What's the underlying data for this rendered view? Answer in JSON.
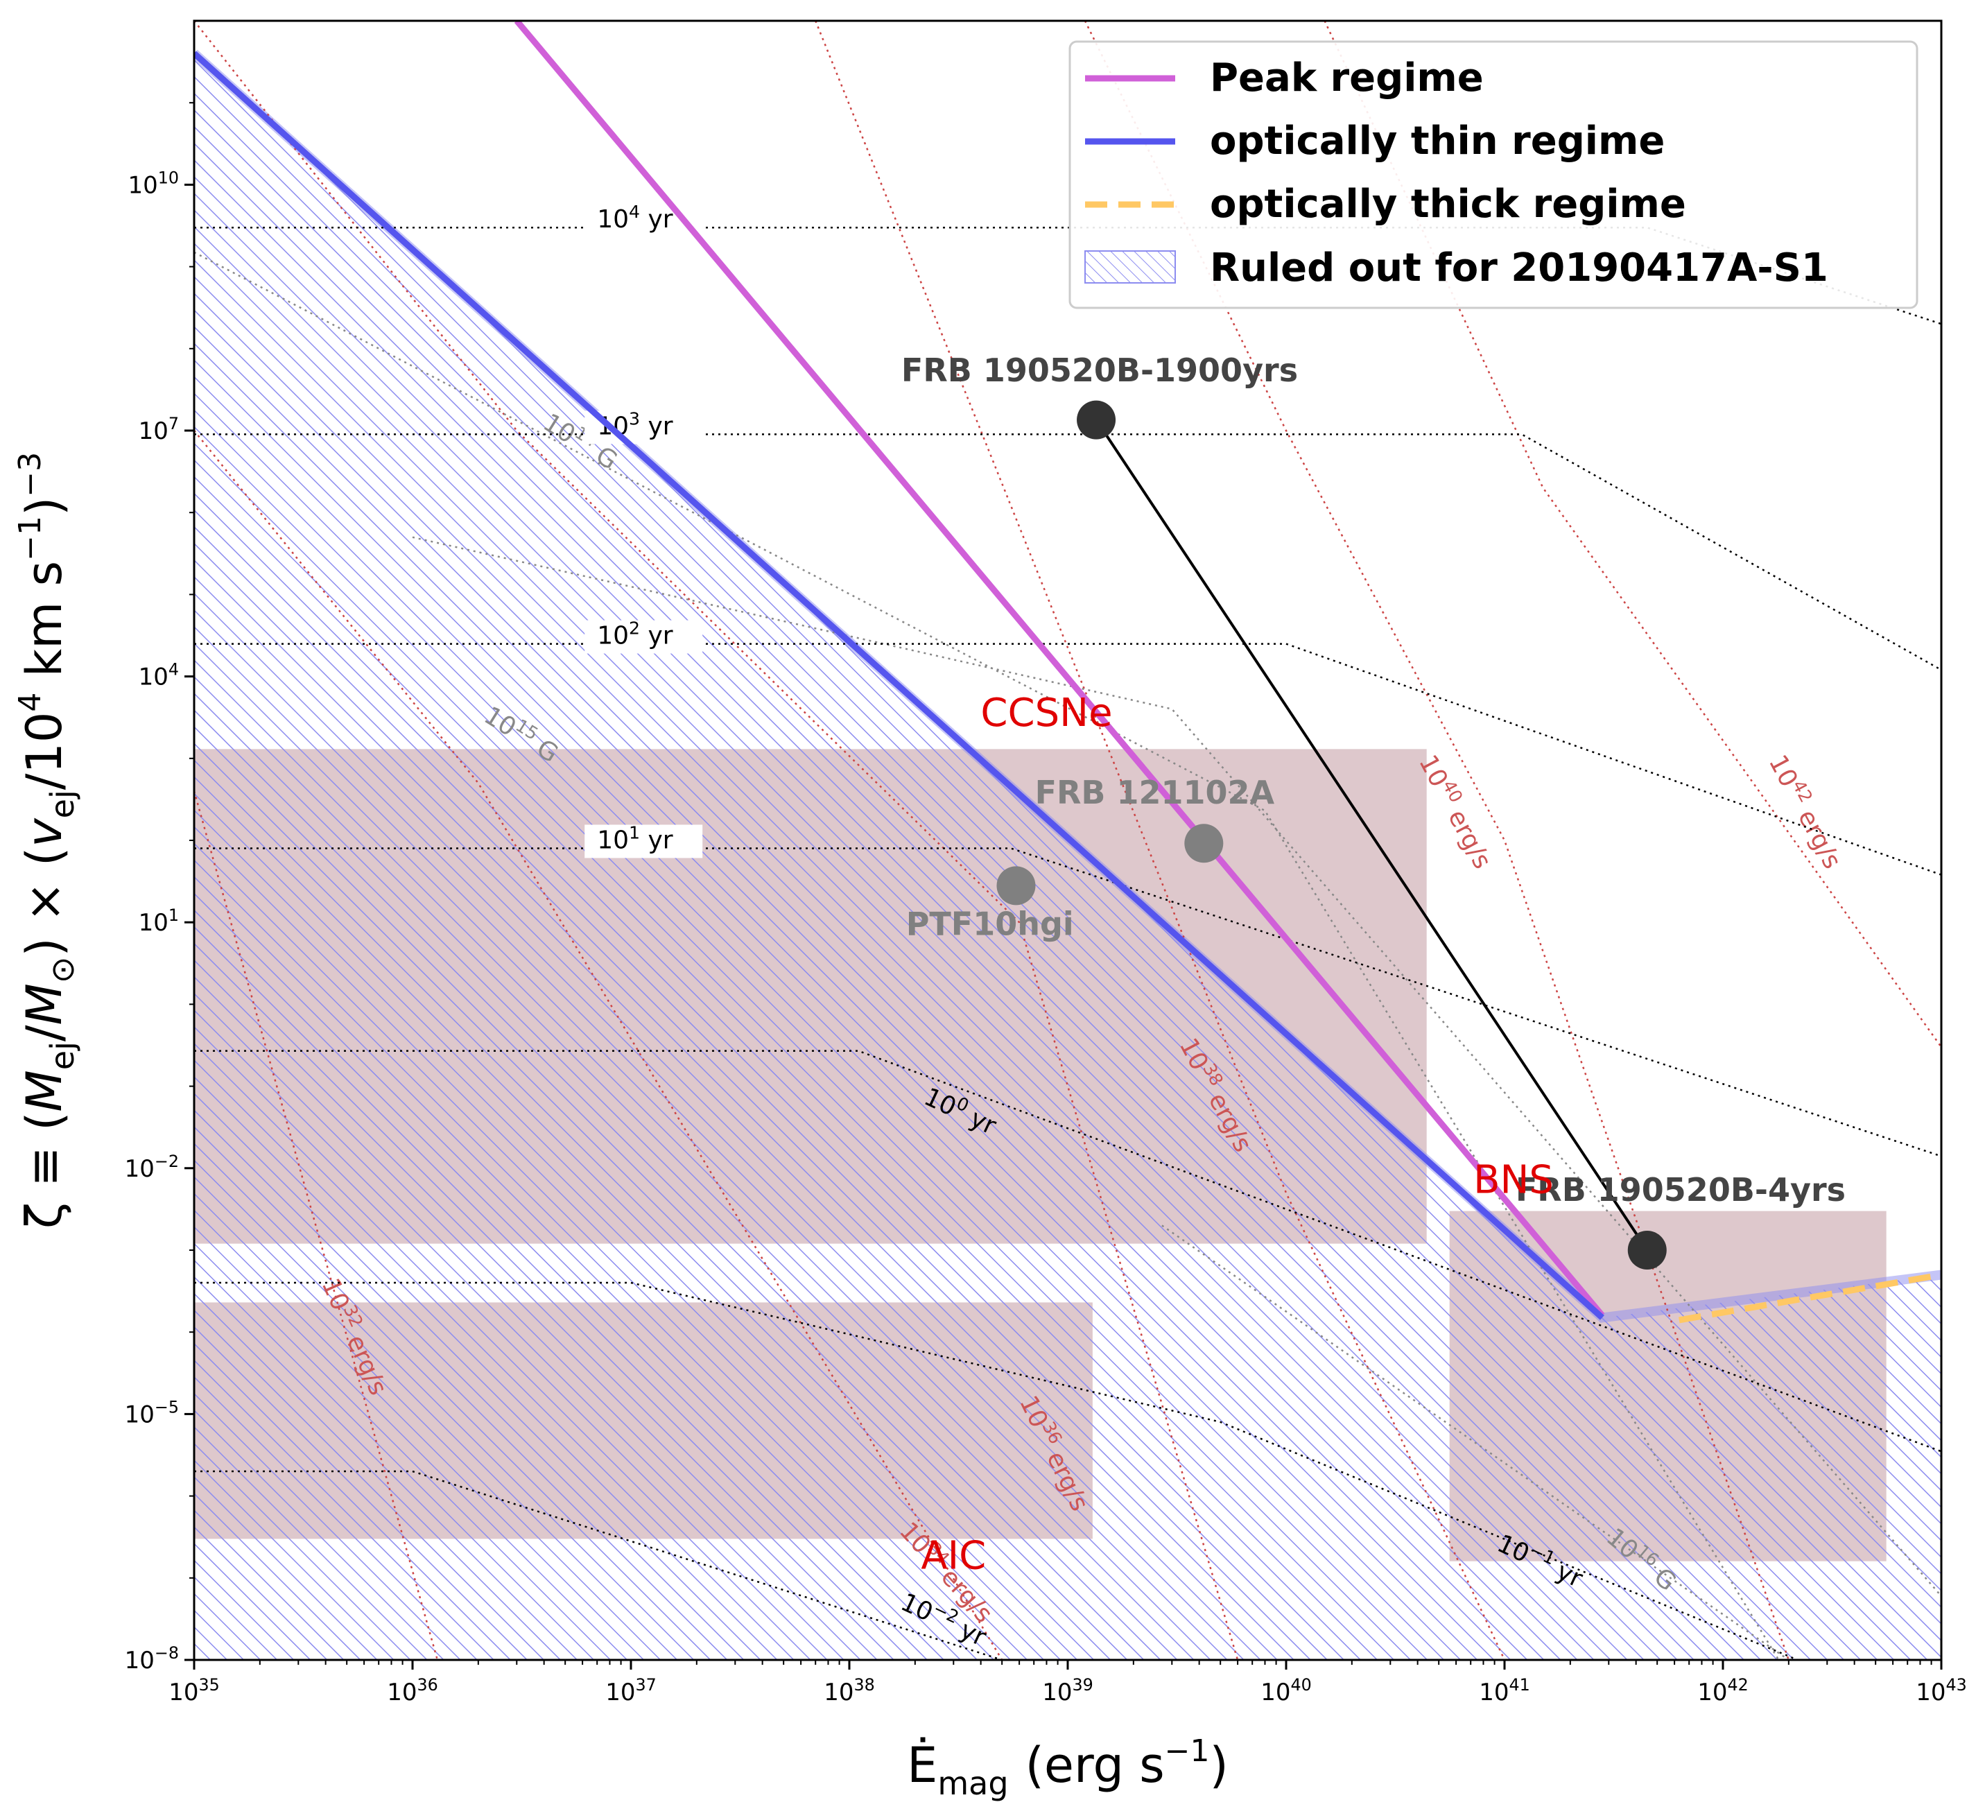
{
  "chart_data": {
    "type": "line",
    "xlabel_base": "Ė",
    "xlabel_sub": "mag",
    "xlabel_units": "(erg s",
    "xlabel_units_exp": "−1",
    "xlabel_units_close": ")",
    "ylabel": "ζ ≡ (M_ej/M_⊙) × (v_ej/10⁴ km s⁻¹)⁻³",
    "ylabel_parts": {
      "zeta": "ζ ≡ (",
      "m": "M",
      "ej1": "ej",
      "slash": "/",
      "m2": "M",
      "sun": "⊙",
      "mid": ") × (",
      "v": "v",
      "ej2": "ej",
      "unit": "/10",
      "exp4": "4",
      "km": " km s",
      "expm1": "−1",
      "close": ")",
      "expm3": "−3"
    },
    "x_scale": "log",
    "y_scale": "log",
    "xlim": [
      1e+35,
      1e+43
    ],
    "ylim": [
      1e-08,
      1000000000000.0
    ],
    "x_ticks": [
      {
        "value": 1e+35,
        "base": "10",
        "exp": "35"
      },
      {
        "value": 1e+36,
        "base": "10",
        "exp": "36"
      },
      {
        "value": 1e+37,
        "base": "10",
        "exp": "37"
      },
      {
        "value": 1e+38,
        "base": "10",
        "exp": "38"
      },
      {
        "value": 1e+39,
        "base": "10",
        "exp": "39"
      },
      {
        "value": 1e+40,
        "base": "10",
        "exp": "40"
      },
      {
        "value": 1e+41,
        "base": "10",
        "exp": "41"
      },
      {
        "value": 1e+42,
        "base": "10",
        "exp": "42"
      },
      {
        "value": 1e+43,
        "base": "10",
        "exp": "43"
      }
    ],
    "y_ticks": [
      {
        "value": 1e-08,
        "base": "10",
        "exp": "−8"
      },
      {
        "value": 1e-05,
        "base": "10",
        "exp": "−5"
      },
      {
        "value": 0.01,
        "base": "10",
        "exp": "−2"
      },
      {
        "value": 10.0,
        "base": "10",
        "exp": "1"
      },
      {
        "value": 10000.0,
        "base": "10",
        "exp": "4"
      },
      {
        "value": 10000000.0,
        "base": "10",
        "exp": "7"
      },
      {
        "value": 10000000000.0,
        "base": "10",
        "exp": "10"
      }
    ],
    "legend": {
      "position": "top-right",
      "entries": [
        {
          "label": "Peak regime",
          "color": "#d060d8",
          "style": "solid"
        },
        {
          "label": "optically thin regime",
          "color": "#5555ee",
          "style": "solid"
        },
        {
          "label": "optically thick regime",
          "color": "#ffc864",
          "style": "dashed"
        },
        {
          "label": "Ruled out for 20190417A-S1",
          "color": "#8888ee",
          "style": "hatch"
        }
      ]
    },
    "series": [
      {
        "name": "Peak regime",
        "color": "#d060d8",
        "x": [
          3e+36,
          2.8e+41
        ],
        "y": [
          1000000000000.0,
          0.00016
        ]
      },
      {
        "name": "optically thin regime",
        "color": "#5555ee",
        "x": [
          1e+35,
          2.8e+41
        ],
        "y": [
          400000000000.0,
          0.00015
        ]
      },
      {
        "name": "optically thick regime",
        "color": "#ffc864",
        "x": [
          6.3e+41,
          1e+43
        ],
        "y": [
          0.00014,
          0.0005
        ]
      }
    ],
    "ruled_out_region": {
      "boundary_x": [
        1e+35,
        2.8e+41,
        1e+43
      ],
      "boundary_y": [
        400000000000.0,
        0.00015,
        0.0005
      ],
      "color": "#8888ee"
    },
    "regions": [
      {
        "label": "CCSNe",
        "x": [
          1e+35,
          4.4e+40
        ],
        "y": [
          0.0012,
          1300.0
        ],
        "label_at": [
          8e+38,
          2500.0
        ]
      },
      {
        "label": "BNS",
        "x": [
          5.6e+40,
          5.6e+42
        ],
        "y": [
          1.6e-07,
          0.003
        ],
        "label_at": [
          1.1e+41,
          0.005
        ]
      },
      {
        "label": "AIC",
        "x": [
          1e+35,
          1.3e+39
        ],
        "y": [
          3e-07,
          0.00023
        ],
        "label_at": [
          3e+38,
          1.3e-07
        ]
      }
    ],
    "points": [
      {
        "label": "FRB 190520B-1900yrs",
        "x": 1.35e+39,
        "y": 13500000.0,
        "color": "#333333",
        "label_color": "#444444",
        "label_at": [
          1.4e+39,
          40000000.0
        ]
      },
      {
        "label": "FRB 190520B-4yrs",
        "x": 4.5e+41,
        "y": 0.001,
        "color": "#333333",
        "label_color": "#444444",
        "label_at": [
          6.4e+41,
          0.004
        ]
      },
      {
        "label": "FRB 121102A",
        "x": 4.2e+39,
        "y": 92,
        "color": "#808080",
        "label_color": "#808080",
        "label_at": [
          2.5e+39,
          280
        ]
      },
      {
        "label": "PTF10hgi",
        "x": 5.8e+38,
        "y": 28,
        "color": "#808080",
        "label_color": "#808080",
        "label_at": [
          4.4e+38,
          7
        ]
      }
    ],
    "connector": {
      "x": [
        1.35e+39,
        4.5e+41
      ],
      "y": [
        13500000.0,
        0.001
      ]
    },
    "age_contours": [
      {
        "label": "10⁴ yr",
        "l_base": "10",
        "l_exp": "4",
        "l_unit": " yr",
        "x": [
          1e+35,
          4.5e+41,
          1e+43
        ],
        "y": [
          3000000000.0,
          3000000000.0,
          200000000.0
        ],
        "label_at": [
          7e+36,
          3000000000.0
        ],
        "angle": 0
      },
      {
        "label": "10³ yr",
        "l_base": "10",
        "l_exp": "3",
        "l_unit": " yr",
        "x": [
          1e+35,
          1.2e+41,
          1e+43
        ],
        "y": [
          9000000.0,
          9000000.0,
          12000.0
        ],
        "label_at": [
          7e+36,
          9000000.0
        ],
        "angle": 0
      },
      {
        "label": "10² yr",
        "l_base": "10",
        "l_exp": "2",
        "l_unit": " yr",
        "x": [
          1e+35,
          1e+40,
          1e+43
        ],
        "y": [
          25000.0,
          25000.0,
          38
        ],
        "label_at": [
          7e+36,
          25000.0
        ],
        "angle": 0
      },
      {
        "label": "10¹ yr",
        "l_base": "10",
        "l_exp": "1",
        "l_unit": " yr",
        "x": [
          1e+35,
          5.5e+38,
          1e+43
        ],
        "y": [
          80,
          80,
          0.014
        ],
        "label_at": [
          7e+36,
          80
        ],
        "angle": 0
      },
      {
        "label": "10⁰ yr",
        "l_base": "10",
        "l_exp": "0",
        "l_unit": " yr",
        "x": [
          1e+35,
          1.1e+38,
          1e+43
        ],
        "y": [
          0.27,
          0.27,
          3.5e-06
        ],
        "label_at": [
          3.1e+38,
          0.04
        ],
        "angle": 25
      },
      {
        "label": "10⁻¹ yr",
        "l_base": "10",
        "l_exp": "−1",
        "l_unit": " yr",
        "x": [
          1e+35,
          1e+37,
          5e+39,
          2.2e+42
        ],
        "y": [
          0.0004,
          0.0004,
          8e-06,
          1e-08
        ],
        "label_at": [
          1.4e+41,
          1.3e-07
        ],
        "angle": 25
      },
      {
        "label": "10⁻² yr",
        "l_base": "10",
        "l_exp": "−2",
        "l_unit": " yr",
        "x": [
          1e+35,
          1e+36,
          5e+38
        ],
        "y": [
          2e-06,
          2e-06,
          1e-08
        ],
        "label_at": [
          2.6e+38,
          2.5e-08
        ],
        "angle": 25
      }
    ],
    "field_contours": [
      {
        "label": "10¹⁴ G",
        "l_base": "10",
        "l_exp": "14",
        "l_unit": " G",
        "x": [
          1e+35,
          8e+39,
          1.8e+42
        ],
        "y": [
          1500000000.0,
          230.0,
          1e-08
        ],
        "label_at": [
          5.6e+36,
          6000000.0
        ],
        "angle": 32
      },
      {
        "label": "10¹⁵ G",
        "l_base": "10",
        "l_exp": "15",
        "l_unit": " G",
        "x": [
          1e+36,
          3e+39,
          1e+43
        ],
        "y": [
          500000.0,
          4000.0,
          6e-08
        ],
        "label_at": [
          3e+36,
          1600.0
        ],
        "angle": 32
      },
      {
        "label": "10¹⁶ G",
        "l_base": "10",
        "l_exp": "16",
        "l_unit": " G",
        "x": [
          2.7e+39,
          2e+42
        ],
        "y": [
          0.002,
          1e-08
        ],
        "label_at": [
          4e+41,
          1.4e-07
        ],
        "angle": 40
      }
    ],
    "luminosity_contours": [
      {
        "label": "10³² erg/s",
        "l_base": "10",
        "l_exp": "32",
        "l_unit": " erg/s",
        "x": [
          1e+35,
          1.3e+36
        ],
        "y": [
          400.0,
          1e-08
        ],
        "label_at": [
          5e+35,
          8e-05
        ],
        "angle": 66
      },
      {
        "label": "10³⁴ erg/s",
        "l_base": "10",
        "l_exp": "34",
        "l_unit": " erg/s",
        "x": [
          1e+35,
          2e+36,
          5e+38
        ],
        "y": [
          10000000.0,
          500.0,
          1e-08
        ],
        "label_at": [
          2.6e+38,
          1e-07
        ],
        "angle": 48
      },
      {
        "label": "10³⁶ erg/s",
        "l_base": "10",
        "l_exp": "36",
        "l_unit": " erg/s",
        "x": [
          1e+35,
          3e+36,
          6e+38,
          6e+39
        ],
        "y": [
          1000000000000.0,
          10000000.0,
          10.0,
          1e-08
        ],
        "label_at": [
          8e+38,
          3e-06
        ],
        "angle": 64
      },
      {
        "label": "10³⁸ erg/s",
        "l_base": "10",
        "l_exp": "38",
        "l_unit": " erg/s",
        "x": [
          7e+37,
          4e+38,
          1e+40,
          1e+41
        ],
        "y": [
          1000000000000.0,
          10000000.0,
          0.005,
          1e-08
        ],
        "label_at": [
          4.4e+39,
          0.07
        ],
        "angle": 62
      },
      {
        "label": "10⁴⁰ erg/s",
        "l_base": "10",
        "l_exp": "40",
        "l_unit": " erg/s",
        "x": [
          1.2e+39,
          1e+40,
          1e+41,
          2e+42
        ],
        "y": [
          1000000000000.0,
          10000000.0,
          100.0,
          1e-08
        ],
        "label_at": [
          5.5e+40,
          200.0
        ],
        "angle": 62
      },
      {
        "label": "10⁴² erg/s",
        "l_base": "10",
        "l_exp": "42",
        "l_unit": " erg/s",
        "x": [
          1.5e+40,
          1.5e+41,
          1e+43
        ],
        "y": [
          1000000000000.0,
          2000000.0,
          0.3
        ],
        "label_at": [
          2.2e+42,
          200.0
        ],
        "angle": 62
      }
    ]
  }
}
